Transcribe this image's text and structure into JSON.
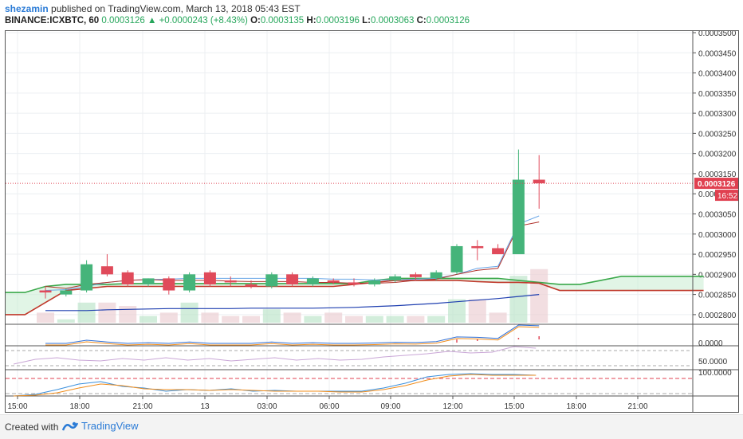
{
  "header": {
    "author": "shezamin",
    "published_text": "published on TradingView.com, March 13, 2018 05:43 EST",
    "symbol": "BINANCE:ICXBTC, 60",
    "last": "0.0003126",
    "change": "+0.0000243 (+8.43%)",
    "o_label": "O:",
    "o_value": "0.0003135",
    "h_label": "H:",
    "h_value": "0.0003196",
    "l_label": "L:",
    "l_value": "0.0003063",
    "c_label": "C:",
    "c_value": "0.0003126"
  },
  "footer": {
    "created_with": "Created with",
    "brand": "TradingView"
  },
  "price_tag": "0.0003126",
  "time_tag": "16:52",
  "colors": {
    "up": "#26a65b",
    "down": "#e04050",
    "accent": "#2b7bd6",
    "lastline": "#e04050"
  },
  "chart_data": {
    "type": "candlestick",
    "price_axis": {
      "min": 0.000278,
      "max": 0.00035,
      "ticks": [
        "0.0003500",
        "0.0003450",
        "0.0003400",
        "0.0003350",
        "0.0003300",
        "0.0003250",
        "0.0003200",
        "0.0003150",
        "0.0003100",
        "0.0003050",
        "0.0003000",
        "0.0002950",
        "0.0002900",
        "0.0002850",
        "0.0002800"
      ]
    },
    "time_labels": [
      "15:00",
      "18:00",
      "21:00",
      "13",
      "03:00",
      "06:00",
      "09:00",
      "12:00",
      "15:00",
      "18:00",
      "21:00"
    ],
    "candles": [
      {
        "o": 0.000286,
        "h": 0.000287,
        "l": 0.000284,
        "c": 0.0002855
      },
      {
        "o": 0.000285,
        "h": 0.0002865,
        "l": 0.0002845,
        "c": 0.000286
      },
      {
        "o": 0.000286,
        "h": 0.0002935,
        "l": 0.0002855,
        "c": 0.0002925
      },
      {
        "o": 0.000292,
        "h": 0.000295,
        "l": 0.0002895,
        "c": 0.00029
      },
      {
        "o": 0.0002905,
        "h": 0.000291,
        "l": 0.000287,
        "c": 0.0002875
      },
      {
        "o": 0.0002875,
        "h": 0.000289,
        "l": 0.000287,
        "c": 0.000289
      },
      {
        "o": 0.000289,
        "h": 0.0002895,
        "l": 0.000285,
        "c": 0.000286
      },
      {
        "o": 0.000286,
        "h": 0.0002905,
        "l": 0.0002855,
        "c": 0.00029
      },
      {
        "o": 0.0002905,
        "h": 0.000291,
        "l": 0.000287,
        "c": 0.0002875
      },
      {
        "o": 0.0002885,
        "h": 0.0002895,
        "l": 0.000287,
        "c": 0.000288
      },
      {
        "o": 0.0002875,
        "h": 0.0002885,
        "l": 0.0002865,
        "c": 0.000287
      },
      {
        "o": 0.000287,
        "h": 0.0002905,
        "l": 0.0002865,
        "c": 0.00029
      },
      {
        "o": 0.00029,
        "h": 0.0002905,
        "l": 0.000287,
        "c": 0.0002875
      },
      {
        "o": 0.0002875,
        "h": 0.0002895,
        "l": 0.000287,
        "c": 0.000289
      },
      {
        "o": 0.0002885,
        "h": 0.000289,
        "l": 0.0002875,
        "c": 0.000288
      },
      {
        "o": 0.000288,
        "h": 0.000289,
        "l": 0.000287,
        "c": 0.0002875
      },
      {
        "o": 0.0002875,
        "h": 0.000289,
        "l": 0.000287,
        "c": 0.0002885
      },
      {
        "o": 0.0002885,
        "h": 0.00029,
        "l": 0.000288,
        "c": 0.0002895
      },
      {
        "o": 0.00029,
        "h": 0.0002905,
        "l": 0.0002885,
        "c": 0.0002893
      },
      {
        "o": 0.000289,
        "h": 0.000291,
        "l": 0.0002885,
        "c": 0.0002905
      },
      {
        "o": 0.0002905,
        "h": 0.0002975,
        "l": 0.00029,
        "c": 0.000297
      },
      {
        "o": 0.000297,
        "h": 0.0002985,
        "l": 0.0002935,
        "c": 0.0002965
      },
      {
        "o": 0.0002965,
        "h": 0.0002975,
        "l": 0.000295,
        "c": 0.000295
      },
      {
        "o": 0.000295,
        "h": 0.000321,
        "l": 0.000295,
        "c": 0.0003135
      },
      {
        "o": 0.0003135,
        "h": 0.0003196,
        "l": 0.0003063,
        "c": 0.0003126
      }
    ],
    "sma_blue_thin": [
      0.000286,
      0.0002862,
      0.000287,
      0.000288,
      0.0002885,
      0.0002887,
      0.0002888,
      0.000289,
      0.000289,
      0.000289,
      0.000289,
      0.000289,
      0.000289,
      0.000289,
      0.0002888,
      0.0002888,
      0.0002886,
      0.0002886,
      0.0002888,
      0.000289,
      0.00029,
      0.0002915,
      0.000292,
      0.0003025,
      0.0003045
    ],
    "sma_red": [
      0.000287,
      0.0002865,
      0.0002875,
      0.000288,
      0.0002885,
      0.0002887,
      0.0002885,
      0.0002885,
      0.0002885,
      0.0002883,
      0.0002882,
      0.0002882,
      0.0002882,
      0.000288,
      0.000288,
      0.0002878,
      0.0002878,
      0.000288,
      0.0002885,
      0.0002888,
      0.00029,
      0.000291,
      0.0002915,
      0.000302,
      0.000303
    ],
    "sma_navy": [
      0.000281,
      0.000281,
      0.000281,
      0.0002812,
      0.0002813,
      0.0002814,
      0.0002815,
      0.0002815,
      0.0002815,
      0.0002815,
      0.0002816,
      0.0002816,
      0.0002816,
      0.0002816,
      0.0002817,
      0.0002818,
      0.000282,
      0.0002822,
      0.0002825,
      0.0002828,
      0.0002832,
      0.0002836,
      0.000284,
      0.0002845,
      0.000285
    ],
    "ichimoku_green": [
      0.0002855,
      0.0002855,
      0.000287,
      0.0002875,
      0.0002875,
      0.0002875,
      0.0002877,
      0.0002877,
      0.0002877,
      0.0002877,
      0.0002877,
      0.0002877,
      0.0002877,
      0.0002877,
      0.0002877,
      0.0002877,
      0.0002877,
      0.0002877,
      0.0002885,
      0.000289,
      0.000289,
      0.000289,
      0.000289,
      0.000289,
      0.000289,
      0.0002885,
      0.000288,
      0.0002875,
      0.0002875,
      0.0002885,
      0.0002895,
      0.0002895,
      0.0002895,
      0.0002895,
      0.0002895
    ],
    "ichimoku_red": [
      0.00028,
      0.00028,
      0.000283,
      0.000286,
      0.0002865,
      0.000287,
      0.000287,
      0.000287,
      0.000287,
      0.000287,
      0.000287,
      0.000287,
      0.000287,
      0.000287,
      0.000287,
      0.000287,
      0.000287,
      0.0002875,
      0.000288,
      0.0002885,
      0.0002885,
      0.0002885,
      0.0002885,
      0.0002882,
      0.000288,
      0.000288,
      0.0002878,
      0.000286,
      0.000286,
      0.000286,
      0.000286,
      0.000286,
      0.000286,
      0.000286,
      0.000286
    ],
    "volume": [
      3,
      1,
      6,
      6,
      5,
      2,
      3,
      6,
      3,
      2,
      2,
      4,
      3,
      2,
      3,
      2,
      2,
      2,
      2,
      2,
      7,
      7,
      3,
      14,
      16
    ],
    "indicator1_ticks": [
      "0.0000"
    ],
    "indicator2_ticks": [
      "50.0000"
    ],
    "indicator3_ticks": [
      "100.0000"
    ]
  }
}
